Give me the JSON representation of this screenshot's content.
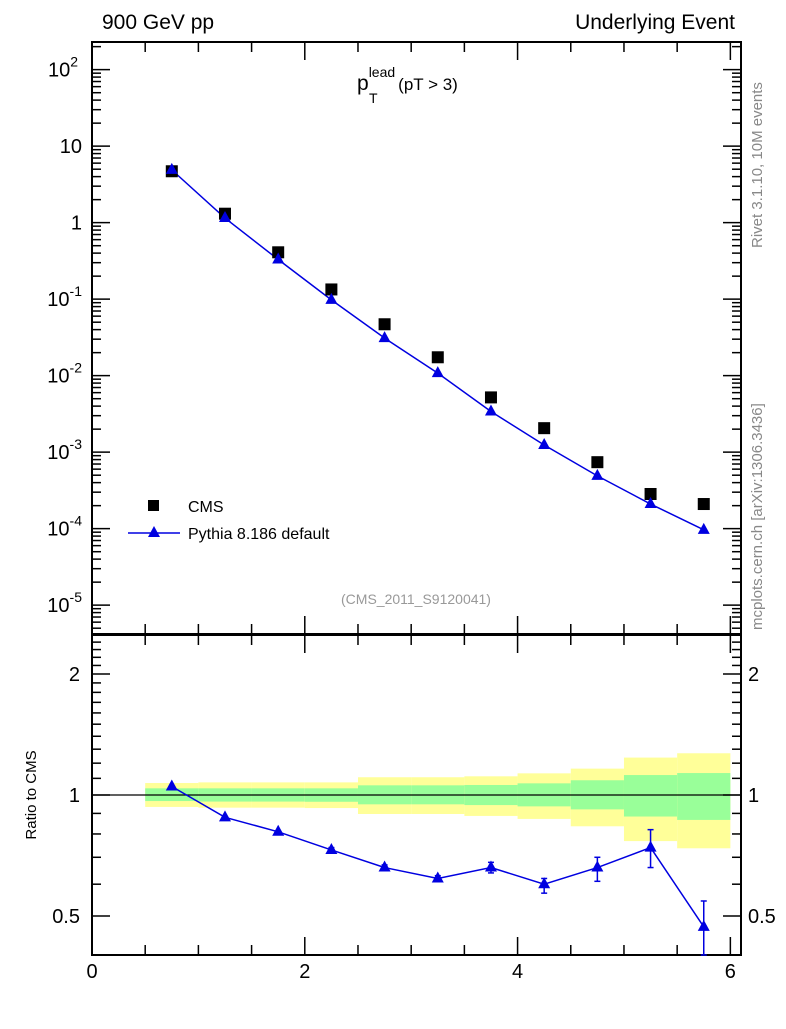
{
  "header": {
    "left": "900 GeV pp",
    "right": "Underlying Event"
  },
  "side_labels": {
    "rivet": "Rivet 3.1.10,  10M events",
    "mcplots": "mcplots.cern.ch [arXiv:1306.3436]"
  },
  "colors": {
    "mc": "#0000e0",
    "data": "#000000",
    "band_yellow": "#ffff99",
    "band_green": "#99ff99",
    "watermark": "#999999"
  },
  "chart_data": [
    {
      "type": "scatter",
      "title_main": "p",
      "title_sup": "lead",
      "title_sub": "T",
      "title_rest": "(pT >  3)",
      "watermark": "(CMS_2011_S9120041)",
      "yscale": "log",
      "xlim": [
        0,
        6.1
      ],
      "ylim": [
        4.2e-06,
        230
      ],
      "ytick_values": [
        1e-05,
        0.0001,
        0.001,
        0.01,
        0.1,
        1,
        10,
        100
      ],
      "ytick_labels": [
        [
          "10",
          "-5"
        ],
        [
          "10",
          "-4"
        ],
        [
          "10",
          "-3"
        ],
        [
          "10",
          "-2"
        ],
        [
          "10",
          "-1"
        ],
        [
          "1",
          ""
        ],
        [
          "10",
          ""
        ],
        [
          "10",
          "2"
        ]
      ],
      "legend_position": "bottom-left",
      "series": [
        {
          "name": "CMS",
          "marker": "square",
          "x": [
            0.75,
            1.25,
            1.75,
            2.25,
            2.75,
            3.25,
            3.75,
            4.25,
            4.75,
            5.25,
            5.75
          ],
          "y": [
            4.7,
            1.31,
            0.41,
            0.134,
            0.047,
            0.0174,
            0.0052,
            0.00206,
            0.00074,
            0.000284,
            0.00021
          ]
        },
        {
          "name": "Pythia 8.186 default",
          "marker": "triangle",
          "line": true,
          "x": [
            0.75,
            1.25,
            1.75,
            2.25,
            2.75,
            3.25,
            3.75,
            4.25,
            4.75,
            5.25,
            5.75
          ],
          "y": [
            4.9,
            1.15,
            0.33,
            0.098,
            0.031,
            0.0108,
            0.0034,
            0.00124,
            0.00049,
            0.00021,
            9.66e-05
          ]
        }
      ]
    },
    {
      "type": "line",
      "ylabel": "Ratio to CMS",
      "yscale": "log",
      "xlim": [
        0,
        6.1
      ],
      "ylim": [
        0.4,
        2.5
      ],
      "xtick_values": [
        0,
        2,
        4,
        6
      ],
      "xtick_labels": [
        "0",
        "2",
        "4",
        "6"
      ],
      "ytick_values": [
        0.5,
        1,
        2
      ],
      "ytick_labels": [
        "0.5",
        "1",
        "2"
      ],
      "bands": {
        "edges": [
          0.5,
          1,
          1.5,
          2,
          2.5,
          3,
          3.5,
          4,
          4.5,
          5,
          5.5,
          6
        ],
        "yellow_hi": [
          1.071,
          1.075,
          1.075,
          1.075,
          1.107,
          1.107,
          1.113,
          1.132,
          1.163,
          1.239,
          1.27
        ],
        "yellow_lo": [
          0.934,
          0.93,
          0.93,
          0.928,
          0.897,
          0.897,
          0.887,
          0.872,
          0.836,
          0.768,
          0.737
        ],
        "green_hi": [
          1.039,
          1.039,
          1.039,
          1.039,
          1.057,
          1.057,
          1.059,
          1.069,
          1.088,
          1.121,
          1.134
        ],
        "green_lo": [
          0.966,
          0.963,
          0.963,
          0.962,
          0.948,
          0.948,
          0.944,
          0.937,
          0.921,
          0.884,
          0.867
        ]
      },
      "series": [
        {
          "name": "Pythia 8.186 default / CMS",
          "x": [
            0.75,
            1.25,
            1.75,
            2.25,
            2.75,
            3.25,
            3.75,
            4.25,
            4.75,
            5.25,
            5.75
          ],
          "y": [
            1.05,
            0.88,
            0.81,
            0.73,
            0.66,
            0.62,
            0.66,
            0.6,
            0.66,
            0.74,
            0.47
          ],
          "err_hi": [
            1.05,
            0.88,
            0.81,
            0.74,
            0.67,
            0.63,
            0.68,
            0.62,
            0.7,
            0.82,
            0.545
          ],
          "err_lo": [
            1.05,
            0.88,
            0.81,
            0.72,
            0.65,
            0.61,
            0.64,
            0.57,
            0.61,
            0.66,
            0.4
          ]
        }
      ]
    }
  ]
}
